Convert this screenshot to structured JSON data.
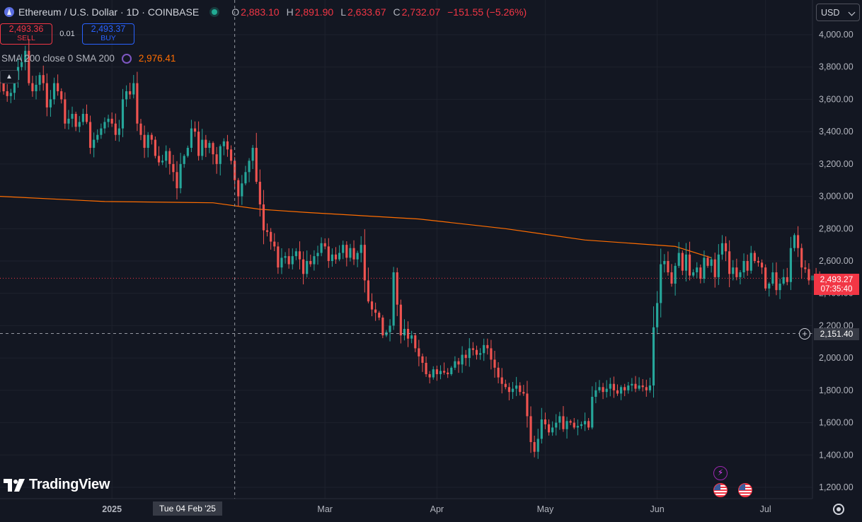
{
  "header": {
    "symbol_title": "Ethereum / U.S. Dollar · 1D · COINBASE",
    "ohlc": [
      {
        "label": "O",
        "value": "2,883.10"
      },
      {
        "label": "H",
        "value": "2,891.90"
      },
      {
        "label": "L",
        "value": "2,633.67"
      },
      {
        "label": "C",
        "value": "2,732.07"
      }
    ],
    "change": "−151.55 (−5.26%)"
  },
  "trade": {
    "sell_price": "2,493.36",
    "sell_label": "SELL",
    "spread": "0.01",
    "buy_price": "2,493.37",
    "buy_label": "BUY"
  },
  "indicator": {
    "label": "SMA 200 close 0 SMA 200",
    "value": "2,976.41",
    "icon": "refresh-icon"
  },
  "currency": "USD",
  "price_badge": {
    "price": "2,493.27",
    "countdown": "07:35:40"
  },
  "crosshair": {
    "price_label": "2,151.40",
    "date_label": "Tue 04 Feb '25",
    "price": 2151.4
  },
  "logo_text": "TradingView",
  "colors": {
    "background": "#131722",
    "up": "#26a69a",
    "down": "#ef5350",
    "sma": "#ff6d00",
    "grid": "#1e222d",
    "axis_text": "#b2b5be"
  },
  "chart_data": {
    "type": "candlestick",
    "ylim": [
      1100,
      4100
    ],
    "y_ticks": [
      1200,
      1400,
      1600,
      1800,
      2000,
      2200,
      2400,
      2600,
      2800,
      3000,
      3200,
      3400,
      3600,
      3800,
      4000
    ],
    "y_tick_labels": [
      "1,200.00",
      "1,400.00",
      "1,600.00",
      "1,800.00",
      "2,000.00",
      "2,200.00",
      "2,400.00",
      "2,600.00",
      "2,800.00",
      "3,000.00",
      "3,200.00",
      "3,400.00",
      "3,600.00",
      "3,800.00",
      "4,000.00"
    ],
    "x_range": [
      "2024-12-01",
      "2025-07-14"
    ],
    "x_ticks": [
      {
        "date": "2025-01-01",
        "label": "2025",
        "bold": true
      },
      {
        "date": "2025-03-01",
        "label": "Mar"
      },
      {
        "date": "2025-04-01",
        "label": "Apr"
      },
      {
        "date": "2025-05-01",
        "label": "May"
      },
      {
        "date": "2025-06-01",
        "label": "Jun"
      },
      {
        "date": "2025-07-01",
        "label": "Jul"
      }
    ],
    "current_price": 2493.27,
    "crosshair_date": "2025-02-04",
    "start_date": "2024-12-01",
    "close": [
      3700,
      3650,
      3620,
      3640,
      3720,
      3800,
      3830,
      3900,
      3700,
      3650,
      3690,
      3750,
      3700,
      3550,
      3600,
      3700,
      3650,
      3600,
      3450,
      3480,
      3510,
      3430,
      3460,
      3510,
      3460,
      3300,
      3350,
      3380,
      3420,
      3460,
      3480,
      3450,
      3380,
      3420,
      3600,
      3650,
      3630,
      3700,
      3450,
      3380,
      3300,
      3380,
      3350,
      3250,
      3210,
      3220,
      3280,
      3200,
      3150,
      3050,
      3200,
      3250,
      3300,
      3420,
      3400,
      3250,
      3350,
      3300,
      3330,
      3260,
      3200,
      3310,
      3340,
      3290,
      3220,
      3100,
      3000,
      3080,
      3150,
      3220,
      3300,
      3090,
      2950,
      2790,
      2780,
      2720,
      2690,
      2560,
      2620,
      2630,
      2580,
      2630,
      2660,
      2610,
      2520,
      2600,
      2580,
      2630,
      2650,
      2710,
      2690,
      2600,
      2640,
      2610,
      2650,
      2700,
      2620,
      2680,
      2610,
      2650,
      2700,
      2480,
      2350,
      2300,
      2280,
      2250,
      2140,
      2160,
      2200,
      2530,
      2330,
      2140,
      2180,
      2120,
      2140,
      2060,
      2010,
      1970,
      1900,
      1880,
      1930,
      1900,
      1920,
      1910,
      1900,
      1940,
      1980,
      1960,
      2020,
      2000,
      2060,
      2050,
      2020,
      2030,
      2080,
      2060,
      1990,
      1940,
      1880,
      1840,
      1820,
      1790,
      1810,
      1830,
      1790,
      1780,
      1640,
      1480,
      1420,
      1500,
      1620,
      1590,
      1540,
      1570,
      1600,
      1640,
      1560,
      1610,
      1600,
      1570,
      1580,
      1590,
      1610,
      1570,
      1760,
      1800,
      1820,
      1790,
      1810,
      1840,
      1800,
      1780,
      1820,
      1800,
      1830,
      1840,
      1810,
      1830,
      1820,
      1800,
      1830,
      2190,
      2340,
      2580,
      2600,
      2530,
      2460,
      2570,
      2650,
      2540,
      2640,
      2510,
      2530,
      2560,
      2490,
      2620,
      2570,
      2610,
      2500,
      2640,
      2710,
      2660,
      2520,
      2560,
      2500,
      2530,
      2600,
      2540,
      2650,
      2600,
      2590,
      2560,
      2430,
      2460,
      2530,
      2420,
      2460,
      2500,
      2470,
      2680,
      2760,
      2680,
      2560,
      2550,
      2480,
      2510,
      2500,
      2450
    ],
    "sma_200": [
      {
        "date": "2024-12-01",
        "value": 3000
      },
      {
        "date": "2024-12-30",
        "value": 2968
      },
      {
        "date": "2025-01-29",
        "value": 2960
      },
      {
        "date": "2025-02-11",
        "value": 2920
      },
      {
        "date": "2025-02-24",
        "value": 2900
      },
      {
        "date": "2025-03-27",
        "value": 2860
      },
      {
        "date": "2025-04-20",
        "value": 2800
      },
      {
        "date": "2025-05-12",
        "value": 2730
      },
      {
        "date": "2025-06-06",
        "value": 2690
      },
      {
        "date": "2025-06-16",
        "value": 2620
      }
    ]
  }
}
